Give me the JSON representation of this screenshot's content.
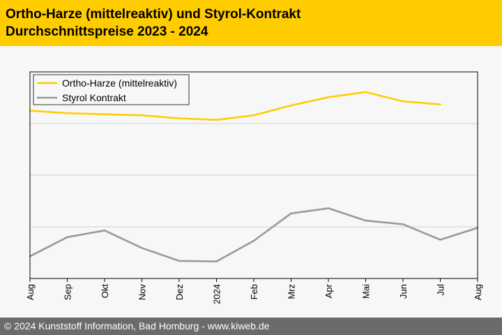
{
  "header": {
    "title_line1": "Ortho-Harze (mittelreaktiv) und Styrol-Kontrakt",
    "title_line2": "Durchschnittspreise 2023 - 2024"
  },
  "footer": {
    "text": "© 2024 Kunststoff Information, Bad Homburg - www.kiweb.de"
  },
  "colors": {
    "header_bg": "#ffcc00",
    "footer_bg": "#6b6b6b",
    "series_ortho": "#ffcc00",
    "series_styrol": "#999999"
  },
  "chart_data": {
    "type": "line",
    "categories": [
      "Aug",
      "Sep",
      "Okt",
      "Nov",
      "Dez",
      "2024",
      "Feb",
      "Mrz",
      "Apr",
      "Mai",
      "Jun",
      "Jul",
      "Aug"
    ],
    "series": [
      {
        "name": "Ortho-Harze (mittelreaktiv)",
        "color": "#ffcc00",
        "values": [
          3.25,
          3.2,
          3.18,
          3.16,
          3.1,
          3.07,
          3.16,
          3.35,
          3.51,
          3.61,
          3.43,
          3.37,
          null
        ]
      },
      {
        "name": "Styrol Kontrakt",
        "color": "#999999",
        "values": [
          0.43,
          0.8,
          0.93,
          0.59,
          0.34,
          0.33,
          0.73,
          1.26,
          1.36,
          1.12,
          1.05,
          0.75,
          0.98
        ]
      }
    ],
    "ylim": [
      0,
      4
    ],
    "y_gridlines": [
      1,
      2,
      3
    ],
    "y_tick_labels_shown": false,
    "legend_position": "top-left",
    "grid": true
  }
}
